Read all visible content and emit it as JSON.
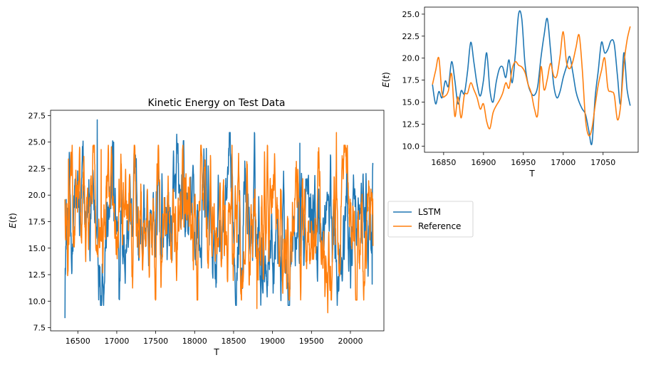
{
  "chart_data": [
    {
      "type": "line",
      "title": "Kinetic Energy on Test Data",
      "xlabel": "T",
      "ylabel": "E(t)",
      "xlim": [
        16150,
        20430
      ],
      "ylim": [
        7.2,
        28.0
      ],
      "xticks": [
        16500,
        17000,
        17500,
        18000,
        18500,
        19000,
        19500,
        20000
      ],
      "xtick_labels": [
        "16500",
        "17000",
        "17500",
        "18000",
        "18500",
        "19000",
        "19500",
        "20000"
      ],
      "yticks": [
        7.5,
        10.0,
        12.5,
        15.0,
        17.5,
        20.0,
        22.5,
        25.0,
        27.5
      ],
      "ytick_labels": [
        "7.5",
        "10.0",
        "12.5",
        "15.0",
        "17.5",
        "20.0",
        "22.5",
        "25.0",
        "27.5"
      ],
      "grid": false,
      "legend": "outside right of main axes",
      "series": [
        {
          "name": "LSTM",
          "color": "#1f77b4",
          "x_range": [
            16335,
            20290
          ],
          "min": 8.4,
          "max": 27.1,
          "mean": 17.2,
          "points_shown": 1500,
          "notable": [
            [
              16335,
              8.4
            ],
            [
              16350,
              19.6
            ],
            [
              16750,
              27.1
            ],
            [
              16960,
              25.0
            ],
            [
              17030,
              10.2
            ],
            [
              18150,
              24.4
            ],
            [
              19350,
              24.9
            ],
            [
              20290,
              22.9
            ],
            [
              20280,
              11.6
            ]
          ]
        },
        {
          "name": "Reference",
          "color": "#ff7f0e",
          "x_range": [
            16335,
            20290
          ],
          "min": 8.9,
          "max": 25.9,
          "mean": 17.0,
          "points_shown": 1500,
          "notable": [
            [
              16335,
              19.6
            ],
            [
              16380,
              23.4
            ],
            [
              16800,
              24.3
            ],
            [
              18480,
              24.7
            ],
            [
              18800,
              9.3
            ],
            [
              19820,
              25.9
            ],
            [
              19710,
              8.9
            ],
            [
              20290,
              15.2
            ]
          ]
        }
      ]
    },
    {
      "type": "line",
      "title": "",
      "xlabel": "T",
      "ylabel": "E(t)",
      "xlim": [
        16826,
        17094
      ],
      "ylim": [
        9.3,
        25.8
      ],
      "xticks": [
        16850,
        16900,
        16950,
        17000,
        17050
      ],
      "xtick_labels": [
        "16850",
        "16900",
        "16950",
        "17000",
        "17050"
      ],
      "yticks": [
        10.0,
        12.5,
        15.0,
        17.5,
        20.0,
        22.5,
        25.0
      ],
      "ytick_labels": [
        "10.0",
        "12.5",
        "15.0",
        "17.5",
        "20.0",
        "22.5",
        "25.0"
      ],
      "grid": false,
      "series": [
        {
          "name": "LSTM",
          "color": "#1f77b4",
          "x": [
            16836,
            16840,
            16844,
            16848,
            16852,
            16856,
            16860,
            16864,
            16868,
            16872,
            16876,
            16880,
            16884,
            16888,
            16892,
            16896,
            16900,
            16904,
            16908,
            16912,
            16916,
            16920,
            16924,
            16928,
            16932,
            16936,
            16940,
            16944,
            16948,
            16952,
            16956,
            16960,
            16964,
            16968,
            16972,
            16976,
            16980,
            16984,
            16988,
            16992,
            16996,
            17000,
            17004,
            17008,
            17012,
            17016,
            17020,
            17024,
            17028,
            17032,
            17036,
            17040,
            17044,
            17048,
            17052,
            17056,
            17060,
            17064,
            17068,
            17072,
            17076,
            17080,
            17084
          ],
          "y": [
            17.0,
            14.8,
            16.2,
            15.5,
            17.4,
            16.8,
            19.6,
            17.5,
            14.8,
            16.3,
            16.0,
            18.5,
            21.8,
            19.5,
            17.0,
            15.7,
            17.5,
            20.6,
            16.4,
            15.0,
            17.3,
            18.8,
            19.0,
            17.8,
            19.8,
            17.2,
            20.5,
            25.0,
            24.5,
            19.4,
            17.0,
            16.0,
            15.8,
            16.8,
            20.0,
            22.6,
            24.5,
            21.0,
            17.0,
            15.5,
            16.2,
            17.8,
            19.0,
            20.2,
            18.4,
            16.2,
            15.0,
            14.2,
            13.6,
            11.8,
            10.3,
            15.5,
            18.6,
            21.8,
            20.6,
            21.0,
            22.0,
            21.6,
            18.0,
            14.8,
            20.6,
            16.5,
            14.6
          ]
        },
        {
          "name": "Reference",
          "color": "#ff7f0e",
          "x": [
            16836,
            16840,
            16844,
            16848,
            16852,
            16856,
            16860,
            16864,
            16868,
            16872,
            16876,
            16880,
            16884,
            16888,
            16892,
            16896,
            16900,
            16904,
            16908,
            16912,
            16916,
            16920,
            16924,
            16928,
            16932,
            16936,
            16940,
            16944,
            16948,
            16952,
            16956,
            16960,
            16964,
            16968,
            16972,
            16976,
            16980,
            16984,
            16988,
            16992,
            16996,
            17000,
            17004,
            17008,
            17012,
            17016,
            17020,
            17024,
            17028,
            17032,
            17036,
            17040,
            17044,
            17048,
            17052,
            17056,
            17060,
            17064,
            17068,
            17072,
            17076,
            17080,
            17084
          ],
          "y": [
            17.0,
            18.6,
            20.0,
            16.0,
            15.7,
            16.3,
            18.2,
            13.4,
            15.6,
            13.2,
            15.8,
            16.0,
            17.2,
            16.4,
            15.5,
            14.2,
            14.8,
            12.8,
            12.0,
            13.8,
            14.6,
            15.2,
            16.0,
            17.2,
            16.6,
            18.8,
            19.6,
            19.2,
            19.0,
            18.4,
            17.0,
            16.0,
            14.2,
            13.6,
            19.0,
            16.4,
            17.6,
            19.4,
            18.0,
            18.0,
            20.2,
            23.0,
            19.6,
            18.8,
            19.6,
            21.2,
            22.6,
            18.6,
            13.0,
            11.2,
            12.0,
            14.6,
            17.0,
            18.6,
            20.0,
            16.6,
            16.2,
            15.8,
            13.0,
            14.6,
            19.2,
            22.0,
            23.6
          ]
        }
      ]
    }
  ]
}
